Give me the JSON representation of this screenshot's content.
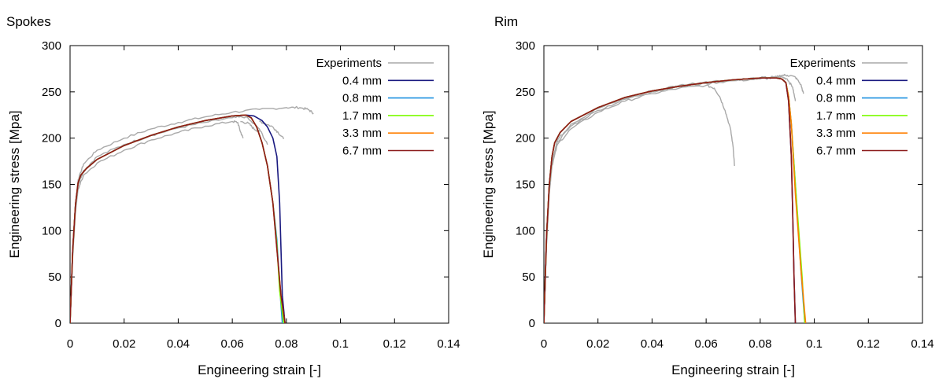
{
  "chart_data": [
    {
      "type": "line",
      "title": "Spokes",
      "xlabel": "Engineering strain [-]",
      "ylabel": "Engineering stress [Mpa]",
      "xlim": [
        0,
        0.14
      ],
      "ylim": [
        0,
        300
      ],
      "xticks": [
        "0",
        "0.02",
        "0.04",
        "0.06",
        "0.08",
        "0.1",
        "0.12",
        "0.14"
      ],
      "yticks": [
        "0",
        "50",
        "100",
        "150",
        "200",
        "250",
        "300"
      ],
      "grid": false,
      "legend_position": "top-right",
      "series": [
        {
          "name": "Experiments",
          "color": "#a9a9a9",
          "noisy": true,
          "curves": [
            {
              "x": [
                0,
                0.001,
                0.002,
                0.003,
                0.005,
                0.01,
                0.02,
                0.03,
                0.04,
                0.05,
                0.06,
                0.07,
                0.08,
                0.085,
                0.088,
                0.09
              ],
              "y": [
                0,
                80,
                130,
                155,
                172,
                187,
                200,
                210,
                217,
                223,
                228,
                231,
                233,
                233,
                231,
                227
              ]
            },
            {
              "x": [
                0,
                0.001,
                0.002,
                0.003,
                0.005,
                0.01,
                0.02,
                0.03,
                0.04,
                0.05,
                0.06,
                0.065,
                0.07,
                0.073
              ],
              "y": [
                0,
                75,
                125,
                150,
                165,
                180,
                193,
                203,
                211,
                217,
                222,
                223,
                210,
                193
              ]
            },
            {
              "x": [
                0,
                0.001,
                0.002,
                0.003,
                0.005,
                0.01,
                0.02,
                0.03,
                0.04,
                0.05,
                0.06,
                0.062,
                0.063,
                0.064
              ],
              "y": [
                0,
                72,
                120,
                145,
                160,
                173,
                187,
                198,
                206,
                213,
                218,
                217,
                207,
                200
              ]
            },
            {
              "x": [
                0.063,
                0.066,
                0.068,
                0.07
              ],
              "y": [
                218,
                216,
                210,
                207
              ]
            },
            {
              "x": [
                0.07,
                0.072,
                0.075,
                0.077,
                0.079
              ],
              "y": [
                218,
                216,
                212,
                206,
                199
              ]
            }
          ]
        },
        {
          "name": "0.4 mm",
          "color": "#1a1a80",
          "curves": [
            {
              "x": [
                0,
                0.001,
                0.002,
                0.003,
                0.004,
                0.006,
                0.01,
                0.02,
                0.03,
                0.04,
                0.05,
                0.06,
                0.065,
                0.068,
                0.071,
                0.073,
                0.075,
                0.0765,
                0.0775,
                0.078,
                0.0785,
                0.0795
              ],
              "y": [
                0,
                80,
                128,
                152,
                160,
                167,
                177,
                192,
                203,
                212,
                219,
                224,
                225,
                224,
                219,
                212,
                200,
                180,
                130,
                80,
                30,
                0
              ]
            }
          ]
        },
        {
          "name": "0.8 mm",
          "color": "#1e90e0",
          "curves": [
            {
              "x": [
                0,
                0.001,
                0.002,
                0.003,
                0.004,
                0.006,
                0.01,
                0.02,
                0.03,
                0.04,
                0.05,
                0.06,
                0.065,
                0.067,
                0.069,
                0.071,
                0.073,
                0.075,
                0.0765,
                0.0775,
                0.0785
              ],
              "y": [
                0,
                80,
                128,
                152,
                160,
                167,
                177,
                192,
                203,
                212,
                219,
                224,
                225,
                222,
                212,
                195,
                170,
                130,
                90,
                40,
                0
              ]
            }
          ]
        },
        {
          "name": "1.7 mm",
          "color": "#7cfc00",
          "curves": [
            {
              "x": [
                0,
                0.001,
                0.002,
                0.003,
                0.004,
                0.006,
                0.01,
                0.02,
                0.03,
                0.04,
                0.05,
                0.06,
                0.065,
                0.067,
                0.069,
                0.071,
                0.073,
                0.075,
                0.0765,
                0.0775,
                0.079
              ],
              "y": [
                0,
                80,
                128,
                152,
                160,
                167,
                177,
                192,
                203,
                212,
                219,
                224,
                225,
                222,
                212,
                195,
                170,
                130,
                85,
                35,
                0
              ]
            }
          ]
        },
        {
          "name": "3.3 mm",
          "color": "#ff7f00",
          "curves": [
            {
              "x": [
                0,
                0.001,
                0.002,
                0.003,
                0.004,
                0.006,
                0.01,
                0.02,
                0.03,
                0.04,
                0.05,
                0.06,
                0.065,
                0.067,
                0.069,
                0.071,
                0.073,
                0.075,
                0.0765,
                0.078,
                0.0795
              ],
              "y": [
                0,
                80,
                128,
                152,
                160,
                167,
                177,
                192,
                203,
                212,
                219,
                224,
                225,
                222,
                212,
                195,
                170,
                130,
                80,
                30,
                0
              ]
            }
          ]
        },
        {
          "name": "6.7 mm",
          "color": "#8b1a1a",
          "curves": [
            {
              "x": [
                0,
                0.001,
                0.002,
                0.003,
                0.004,
                0.006,
                0.01,
                0.02,
                0.03,
                0.04,
                0.05,
                0.06,
                0.065,
                0.067,
                0.069,
                0.071,
                0.073,
                0.075,
                0.0765,
                0.078,
                0.0795
              ],
              "y": [
                0,
                80,
                128,
                152,
                160,
                167,
                177,
                192,
                203,
                212,
                219,
                224,
                225,
                222,
                212,
                195,
                170,
                130,
                80,
                30,
                0
              ]
            }
          ]
        }
      ]
    },
    {
      "type": "line",
      "title": "Rim",
      "xlabel": "Engineering strain [-]",
      "ylabel": "Engineering stress [Mpa]",
      "xlim": [
        0,
        0.14
      ],
      "ylim": [
        0,
        300
      ],
      "xticks": [
        "0",
        "0.02",
        "0.04",
        "0.06",
        "0.08",
        "0.1",
        "0.12",
        "0.14"
      ],
      "yticks": [
        "0",
        "50",
        "100",
        "150",
        "200",
        "250",
        "300"
      ],
      "grid": false,
      "legend_position": "top-right",
      "series": [
        {
          "name": "Experiments",
          "color": "#a9a9a9",
          "noisy": true,
          "curves": [
            {
              "x": [
                0,
                0.001,
                0.002,
                0.003,
                0.005,
                0.01,
                0.02,
                0.03,
                0.04,
                0.05,
                0.06,
                0.07,
                0.08,
                0.085,
                0.088,
                0.09,
                0.092,
                0.093
              ],
              "y": [
                0,
                90,
                145,
                175,
                198,
                215,
                232,
                243,
                251,
                257,
                261,
                263,
                265,
                266,
                266,
                264,
                255,
                240
              ]
            },
            {
              "x": [
                0,
                0.001,
                0.002,
                0.003,
                0.005,
                0.01,
                0.02,
                0.03,
                0.04,
                0.05,
                0.06,
                0.063,
                0.065,
                0.067,
                0.069,
                0.07,
                0.0705
              ],
              "y": [
                0,
                85,
                140,
                170,
                193,
                210,
                228,
                240,
                248,
                254,
                257,
                254,
                245,
                230,
                210,
                190,
                170
              ]
            },
            {
              "x": [
                0,
                0.001,
                0.002,
                0.003,
                0.005,
                0.01,
                0.02,
                0.03,
                0.04,
                0.05,
                0.06,
                0.07,
                0.08,
                0.085,
                0.088,
                0.09,
                0.093,
                0.095,
                0.096
              ],
              "y": [
                0,
                88,
                143,
                173,
                196,
                213,
                230,
                242,
                250,
                256,
                259,
                262,
                264,
                265,
                268,
                268,
                266,
                258,
                248
              ]
            }
          ]
        },
        {
          "name": "0.4 mm",
          "color": "#1a1a80",
          "curves": [
            {
              "x": [
                0,
                0.001,
                0.002,
                0.003,
                0.004,
                0.006,
                0.01,
                0.02,
                0.03,
                0.04,
                0.05,
                0.06,
                0.07,
                0.08,
                0.086,
                0.088,
                0.0895,
                0.0905,
                0.0915,
                0.092,
                0.0925,
                0.093
              ],
              "y": [
                0,
                95,
                150,
                180,
                195,
                206,
                218,
                233,
                244,
                251,
                256,
                260,
                263,
                265,
                265,
                264,
                260,
                240,
                180,
                120,
                50,
                0
              ]
            }
          ]
        },
        {
          "name": "0.8 mm",
          "color": "#1e90e0",
          "curves": [
            {
              "x": [
                0,
                0.001,
                0.002,
                0.003,
                0.004,
                0.006,
                0.01,
                0.02,
                0.03,
                0.04,
                0.05,
                0.06,
                0.07,
                0.08,
                0.086,
                0.088,
                0.0895,
                0.0905,
                0.0915,
                0.093,
                0.095,
                0.0965
              ],
              "y": [
                0,
                95,
                150,
                180,
                195,
                206,
                218,
                233,
                244,
                251,
                256,
                260,
                263,
                265,
                265,
                264,
                260,
                245,
                215,
                150,
                60,
                0
              ]
            }
          ]
        },
        {
          "name": "1.7 mm",
          "color": "#7cfc00",
          "curves": [
            {
              "x": [
                0,
                0.001,
                0.002,
                0.003,
                0.004,
                0.006,
                0.01,
                0.02,
                0.03,
                0.04,
                0.05,
                0.06,
                0.07,
                0.08,
                0.086,
                0.088,
                0.0895,
                0.0905,
                0.0915,
                0.093,
                0.0955,
                0.0965
              ],
              "y": [
                0,
                95,
                150,
                180,
                195,
                206,
                218,
                233,
                244,
                251,
                256,
                260,
                263,
                265,
                265,
                264,
                260,
                245,
                215,
                150,
                50,
                0
              ]
            }
          ]
        },
        {
          "name": "3.3 mm",
          "color": "#ff7f00",
          "curves": [
            {
              "x": [
                0,
                0.001,
                0.002,
                0.003,
                0.004,
                0.006,
                0.01,
                0.02,
                0.03,
                0.04,
                0.05,
                0.06,
                0.07,
                0.08,
                0.086,
                0.088,
                0.0895,
                0.0905,
                0.0915,
                0.093,
                0.095,
                0.0968
              ],
              "y": [
                0,
                95,
                150,
                180,
                195,
                206,
                218,
                233,
                244,
                251,
                256,
                260,
                263,
                265,
                265,
                264,
                260,
                245,
                215,
                140,
                60,
                0
              ]
            }
          ]
        },
        {
          "name": "6.7 mm",
          "color": "#8b1a1a",
          "curves": [
            {
              "x": [
                0,
                0.001,
                0.002,
                0.003,
                0.004,
                0.006,
                0.01,
                0.02,
                0.03,
                0.04,
                0.05,
                0.06,
                0.07,
                0.08,
                0.086,
                0.088,
                0.0895,
                0.0905,
                0.0915,
                0.092,
                0.0925,
                0.093
              ],
              "y": [
                0,
                95,
                150,
                180,
                195,
                206,
                218,
                233,
                244,
                251,
                256,
                260,
                263,
                265,
                265,
                264,
                260,
                240,
                180,
                120,
                50,
                0
              ]
            }
          ]
        }
      ]
    }
  ]
}
